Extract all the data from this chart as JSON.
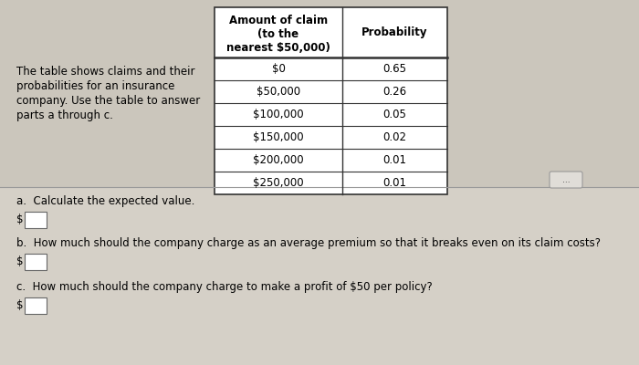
{
  "intro_text_lines": [
    "The table shows claims and their",
    "probabilities for an insurance",
    "company. Use the table to answer",
    "parts a through c."
  ],
  "col1_header_lines": [
    "Amount of claim",
    "(to the",
    "nearest $50,000)"
  ],
  "col2_header": "Probability",
  "claims": [
    "$0",
    "$50,000",
    "$100,000",
    "$150,000",
    "$200,000",
    "$250,000"
  ],
  "probabilities": [
    "0.65",
    "0.26",
    "0.05",
    "0.02",
    "0.01",
    "0.01"
  ],
  "question_a": "a.  Calculate the expected value.",
  "question_b": "b.  How much should the company charge as an average premium so that it breaks even on its claim costs?",
  "question_c": "c.  How much should the company charge to make a profit of $50 per policy?",
  "dollar_sign": "$",
  "upper_bg": "#cbc6bc",
  "lower_bg": "#d5d0c7",
  "divider_color": "#999999",
  "table_bg": "#ffffff",
  "border_color": "#333333",
  "text_color": "#000000",
  "dots_label": "...",
  "input_box_color": "#ffffff",
  "input_border_color": "#666666"
}
